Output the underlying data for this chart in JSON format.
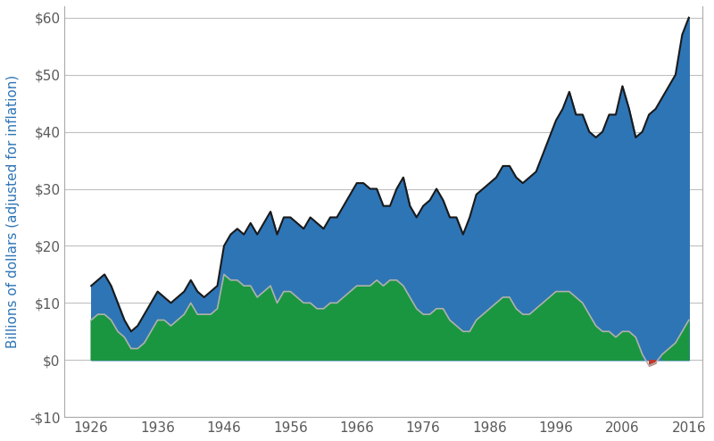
{
  "title": "",
  "ylabel": "Billions of dollars (adjusted for inflation)",
  "ylabel_color": "#2E75B6",
  "background_color": "#ffffff",
  "plot_bg_color": "#ffffff",
  "xlim": [
    1922,
    2018
  ],
  "ylim": [
    -10,
    62
  ],
  "yticks": [
    -10,
    0,
    10,
    20,
    30,
    40,
    50,
    60
  ],
  "ytick_labels": [
    "-$10",
    "$0",
    "$10",
    "$20",
    "$30",
    "$40",
    "$50",
    "$60"
  ],
  "xticks": [
    1926,
    1936,
    1946,
    1956,
    1966,
    1976,
    1986,
    1996,
    2006,
    2016
  ],
  "gross_color": "#2E75B6",
  "gross_line_color": "#1a1a1a",
  "net_positive_color": "#1a9641",
  "net_negative_color": "#c0392b",
  "net_line_color": "#b0b0b0",
  "grid_color": "#c0c0c0",
  "years": [
    1926,
    1927,
    1928,
    1929,
    1930,
    1931,
    1932,
    1933,
    1934,
    1935,
    1936,
    1937,
    1938,
    1939,
    1940,
    1941,
    1942,
    1943,
    1944,
    1945,
    1946,
    1947,
    1948,
    1949,
    1950,
    1951,
    1952,
    1953,
    1954,
    1955,
    1956,
    1957,
    1958,
    1959,
    1960,
    1961,
    1962,
    1963,
    1964,
    1965,
    1966,
    1967,
    1968,
    1969,
    1970,
    1971,
    1972,
    1973,
    1974,
    1975,
    1976,
    1977,
    1978,
    1979,
    1980,
    1981,
    1982,
    1983,
    1984,
    1985,
    1986,
    1987,
    1988,
    1989,
    1990,
    1991,
    1992,
    1993,
    1994,
    1995,
    1996,
    1997,
    1998,
    1999,
    2000,
    2001,
    2002,
    2003,
    2004,
    2005,
    2006,
    2007,
    2008,
    2009,
    2010,
    2011,
    2012,
    2013,
    2014,
    2015,
    2016
  ],
  "gross": [
    13,
    14,
    15,
    13,
    10,
    7,
    5,
    6,
    8,
    10,
    12,
    11,
    10,
    11,
    12,
    14,
    12,
    11,
    12,
    13,
    20,
    22,
    23,
    22,
    24,
    22,
    24,
    26,
    22,
    25,
    25,
    24,
    23,
    25,
    24,
    23,
    25,
    25,
    27,
    29,
    31,
    31,
    30,
    30,
    27,
    27,
    30,
    32,
    27,
    25,
    27,
    28,
    30,
    28,
    25,
    25,
    22,
    25,
    29,
    30,
    31,
    32,
    34,
    34,
    32,
    31,
    32,
    33,
    36,
    39,
    42,
    44,
    47,
    43,
    43,
    40,
    39,
    40,
    43,
    43,
    48,
    44,
    39,
    40,
    43,
    44,
    46,
    48,
    50,
    57,
    60
  ],
  "net": [
    7,
    8,
    8,
    7,
    5,
    4,
    2,
    2,
    3,
    5,
    7,
    7,
    6,
    7,
    8,
    10,
    8,
    8,
    8,
    9,
    15,
    14,
    14,
    13,
    13,
    11,
    12,
    13,
    10,
    12,
    12,
    11,
    10,
    10,
    9,
    9,
    10,
    10,
    11,
    12,
    13,
    13,
    13,
    14,
    13,
    14,
    14,
    13,
    11,
    9,
    8,
    8,
    9,
    9,
    7,
    6,
    5,
    5,
    7,
    8,
    9,
    10,
    11,
    11,
    9,
    8,
    8,
    9,
    10,
    11,
    12,
    12,
    12,
    11,
    10,
    8,
    6,
    5,
    5,
    4,
    5,
    5,
    4,
    1,
    -1,
    -0.5,
    1,
    2,
    3,
    5,
    7
  ],
  "net_zero_cross_start": 2008,
  "net_zero_cross_end": 2010
}
